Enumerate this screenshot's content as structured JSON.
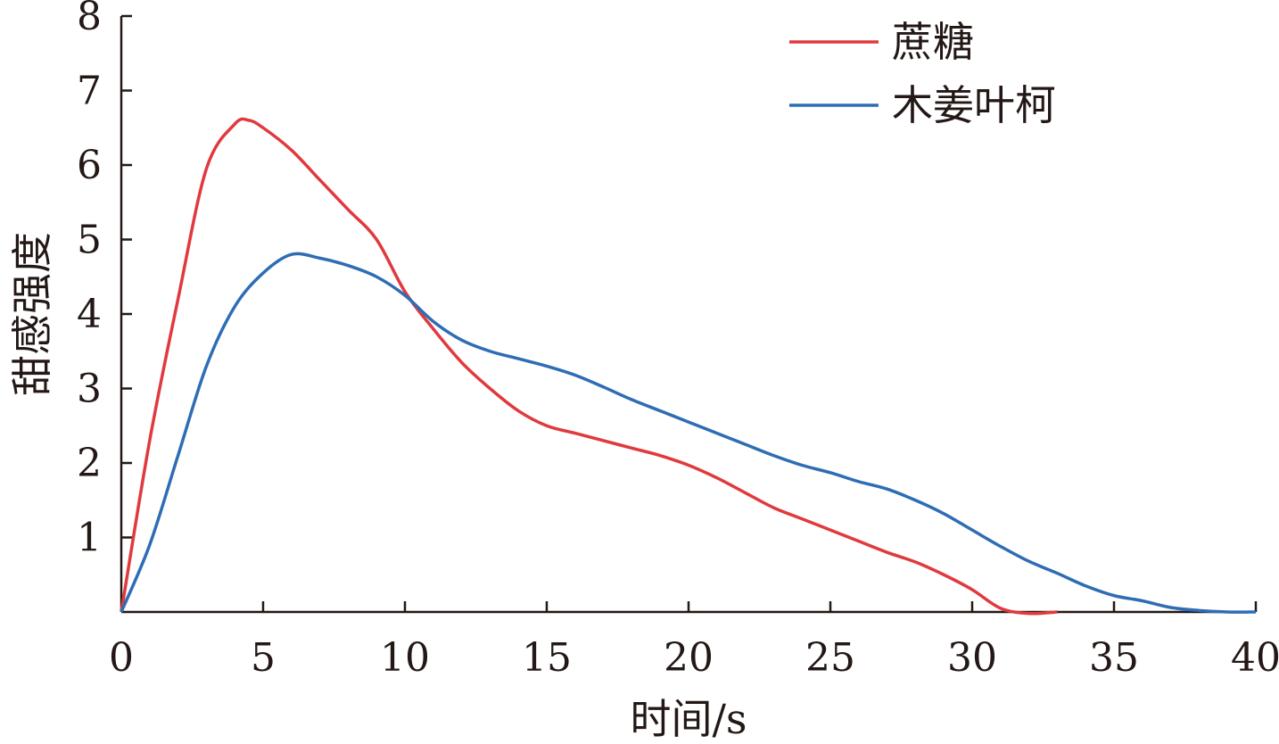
{
  "chart_data": {
    "type": "line",
    "title": "",
    "xlabel": "时间/s",
    "ylabel": "甜感强度",
    "xlim": [
      0,
      40
    ],
    "ylim": [
      0,
      8
    ],
    "xticks": [
      "0",
      "5",
      "10",
      "15",
      "20",
      "25",
      "30",
      "35",
      "40"
    ],
    "yticks": [
      "1",
      "2",
      "3",
      "4",
      "5",
      "6",
      "7",
      "8"
    ],
    "grid": false,
    "legend_position": "top-right",
    "series": [
      {
        "name": "蔗糖",
        "color": "#e0393e",
        "x": [
          0,
          1,
          2,
          3,
          4,
          4.5,
          5,
          6,
          7,
          8,
          9,
          10,
          11,
          12,
          13,
          14,
          15,
          16,
          17,
          18,
          19,
          20,
          21,
          22,
          23,
          24,
          25,
          26,
          27,
          28,
          29,
          30,
          31,
          32,
          33
        ],
        "y": [
          0,
          2.3,
          4.2,
          5.95,
          6.55,
          6.6,
          6.5,
          6.2,
          5.8,
          5.4,
          5.0,
          4.3,
          3.8,
          3.35,
          3.0,
          2.7,
          2.5,
          2.4,
          2.3,
          2.2,
          2.1,
          1.97,
          1.8,
          1.6,
          1.4,
          1.25,
          1.1,
          0.95,
          0.8,
          0.67,
          0.5,
          0.3,
          0.05,
          -0.02,
          0
        ]
      },
      {
        "name": "木姜叶柯",
        "color": "#2e6db4",
        "x": [
          0,
          1,
          2,
          3,
          4,
          5,
          6,
          7,
          8,
          9,
          10,
          11,
          12,
          13,
          14,
          15,
          16,
          17,
          18,
          19,
          20,
          21,
          22,
          23,
          24,
          25,
          26,
          27,
          28,
          29,
          30,
          31,
          32,
          33,
          34,
          35,
          36,
          37,
          38,
          39,
          40
        ],
        "y": [
          0,
          0.9,
          2.1,
          3.3,
          4.1,
          4.55,
          4.8,
          4.75,
          4.65,
          4.5,
          4.25,
          3.9,
          3.65,
          3.5,
          3.4,
          3.3,
          3.18,
          3.02,
          2.85,
          2.7,
          2.55,
          2.4,
          2.25,
          2.1,
          1.97,
          1.87,
          1.75,
          1.65,
          1.5,
          1.32,
          1.1,
          0.88,
          0.68,
          0.52,
          0.35,
          0.22,
          0.15,
          0.06,
          0.02,
          0,
          0
        ]
      }
    ]
  }
}
